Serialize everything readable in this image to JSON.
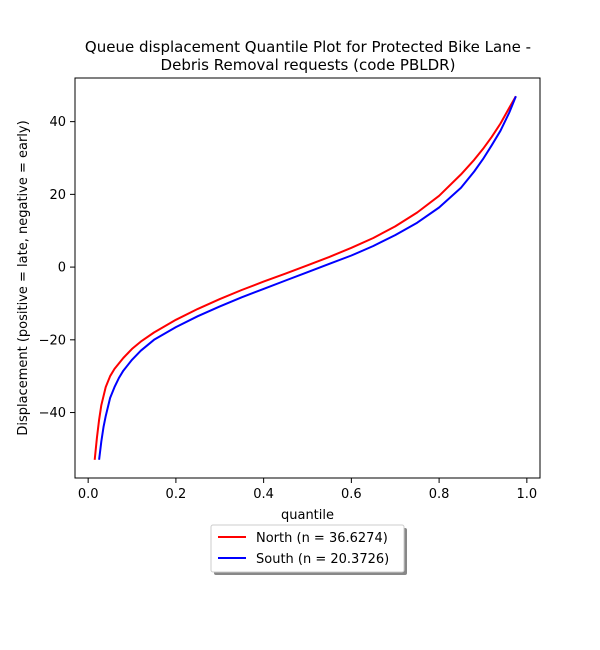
{
  "chart_data": {
    "type": "line",
    "title_lines": [
      "Queue displacement Quantile Plot for Protected Bike Lane -",
      "Debris Removal  requests (code PBLDR)"
    ],
    "xlabel": "quantile",
    "ylabel": "Displacement (positive = late, negative = early)",
    "xlim": [
      -0.03,
      1.03
    ],
    "ylim": [
      -58,
      52
    ],
    "x_ticks": [
      0.0,
      0.2,
      0.4,
      0.6,
      0.8,
      1.0
    ],
    "x_tick_labels": [
      "0.0",
      "0.2",
      "0.4",
      "0.6",
      "0.8",
      "1.0"
    ],
    "y_ticks": [
      -40,
      -20,
      0,
      20,
      40
    ],
    "y_tick_labels": [
      "−40",
      "−20",
      "0",
      "20",
      "40"
    ],
    "grid": false,
    "legend_position": "below-center",
    "series": [
      {
        "name": "North (n = 36.6274)",
        "color": "#ff0000",
        "x": [
          0.015,
          0.02,
          0.025,
          0.03,
          0.04,
          0.05,
          0.06,
          0.08,
          0.1,
          0.12,
          0.15,
          0.2,
          0.25,
          0.3,
          0.35,
          0.4,
          0.45,
          0.5,
          0.55,
          0.6,
          0.65,
          0.7,
          0.75,
          0.8,
          0.85,
          0.88,
          0.9,
          0.92,
          0.94,
          0.96,
          0.975
        ],
        "y": [
          -53,
          -47,
          -42,
          -38,
          -33,
          -30,
          -28,
          -25,
          -22.5,
          -20.5,
          -18,
          -14.5,
          -11.5,
          -8.8,
          -6.3,
          -4,
          -1.8,
          0.5,
          2.8,
          5.3,
          8,
          11.2,
          15,
          19.6,
          25.5,
          29.5,
          32.5,
          35.8,
          39.5,
          43.8,
          47
        ]
      },
      {
        "name": "South (n = 20.3726)",
        "color": "#0000ff",
        "x": [
          0.025,
          0.03,
          0.035,
          0.04,
          0.05,
          0.06,
          0.07,
          0.08,
          0.1,
          0.12,
          0.15,
          0.2,
          0.25,
          0.3,
          0.35,
          0.4,
          0.45,
          0.5,
          0.55,
          0.6,
          0.65,
          0.7,
          0.75,
          0.8,
          0.85,
          0.88,
          0.9,
          0.92,
          0.94,
          0.96,
          0.975
        ],
        "y": [
          -53,
          -48,
          -44,
          -41,
          -36,
          -33,
          -30.5,
          -28.5,
          -25.5,
          -23,
          -20,
          -16.5,
          -13.5,
          -10.8,
          -8.3,
          -6,
          -3.7,
          -1.4,
          0.9,
          3.2,
          5.8,
          8.8,
          12.2,
          16.4,
          21.8,
          26.3,
          29.7,
          33.5,
          37.5,
          42.5,
          47
        ]
      }
    ]
  }
}
